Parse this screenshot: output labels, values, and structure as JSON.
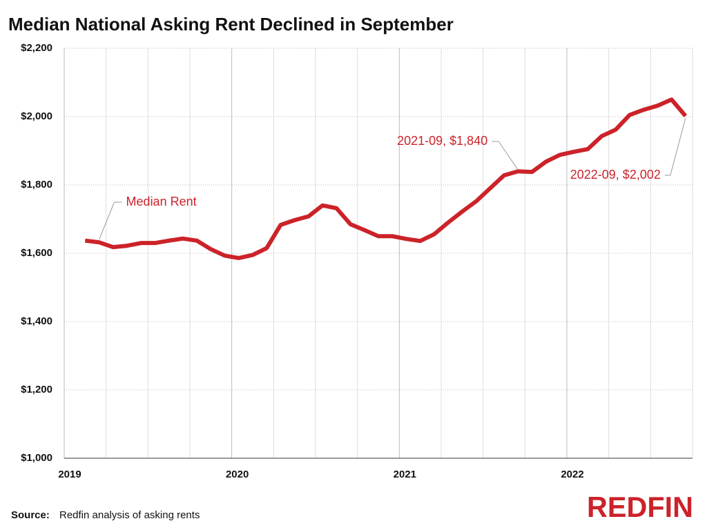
{
  "chart_data": {
    "type": "line",
    "title": "Median National Asking Rent Declined in September",
    "x": [
      "2019-02",
      "2019-03",
      "2019-04",
      "2019-05",
      "2019-06",
      "2019-07",
      "2019-08",
      "2019-09",
      "2019-10",
      "2019-11",
      "2019-12",
      "2020-01",
      "2020-02",
      "2020-03",
      "2020-04",
      "2020-05",
      "2020-06",
      "2020-07",
      "2020-08",
      "2020-09",
      "2020-10",
      "2020-11",
      "2020-12",
      "2021-01",
      "2021-02",
      "2021-03",
      "2021-04",
      "2021-05",
      "2021-06",
      "2021-07",
      "2021-08",
      "2021-09",
      "2021-10",
      "2021-11",
      "2021-12",
      "2022-01",
      "2022-02",
      "2022-03",
      "2022-04",
      "2022-05",
      "2022-06",
      "2022-07",
      "2022-08",
      "2022-09"
    ],
    "series": [
      {
        "name": "Median Rent",
        "color": "#cc2229",
        "values": [
          1637,
          1632,
          1618,
          1622,
          1630,
          1630,
          1637,
          1643,
          1637,
          1612,
          1593,
          1586,
          1595,
          1615,
          1683,
          1697,
          1708,
          1740,
          1732,
          1685,
          1668,
          1650,
          1650,
          1642,
          1636,
          1656,
          1690,
          1722,
          1752,
          1790,
          1828,
          1840,
          1838,
          1868,
          1888,
          1897,
          1905,
          1943,
          1962,
          2005,
          2020,
          2032,
          2050,
          2002
        ]
      }
    ],
    "annotations": [
      "2021-09, $1,840",
      "2022-09, $2,002"
    ],
    "xlim": [
      2019,
      2022.75
    ],
    "xticks": [
      2019,
      2020,
      2021,
      2022
    ],
    "ylim": [
      1000,
      2200
    ],
    "yticks": [
      {
        "value": 1000,
        "label": "$1,000"
      },
      {
        "value": 1200,
        "label": "$1,200"
      },
      {
        "value": 1400,
        "label": "$1,400"
      },
      {
        "value": 1600,
        "label": "$1,600"
      },
      {
        "value": 1800,
        "label": "$1,800"
      },
      {
        "value": 2000,
        "label": "$2,000"
      },
      {
        "value": 2200,
        "label": "$2,200"
      }
    ],
    "grid": true,
    "source_label": "Source:",
    "source": "Redfin analysis of asking rents",
    "logo": "REDFIN"
  }
}
